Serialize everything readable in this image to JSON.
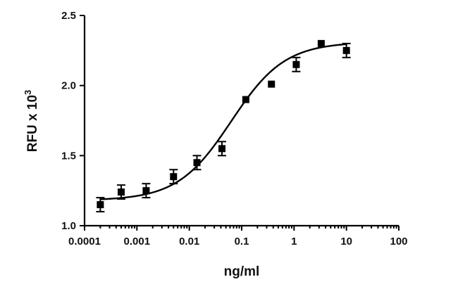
{
  "chart_data": {
    "type": "scatter",
    "title": "",
    "xlabel": "ng/ml",
    "ylabel": "RFU x 10",
    "ylabel_superscript": "3",
    "x_scale": "log",
    "xlim": [
      0.0001,
      100
    ],
    "ylim": [
      1.0,
      2.5
    ],
    "x_tick_labels": [
      "0.0001",
      "0.001",
      "0.01",
      "0.1",
      "1",
      "10",
      "100"
    ],
    "x_tick_values": [
      0.0001,
      0.001,
      0.01,
      0.1,
      1,
      10,
      100
    ],
    "y_tick_labels": [
      "1.0",
      "1.5",
      "2.0",
      "2.5"
    ],
    "y_tick_values": [
      1.0,
      1.5,
      2.0,
      2.5
    ],
    "grid": false,
    "series": [
      {
        "x": [
          0.0002,
          0.0005,
          0.0015,
          0.005,
          0.014,
          0.042,
          0.12,
          0.37,
          1.1,
          3.3,
          10
        ],
        "y": [
          1.15,
          1.24,
          1.25,
          1.35,
          1.45,
          1.55,
          1.9,
          2.01,
          2.15,
          2.3,
          2.25
        ],
        "yerr": [
          0.05,
          0.05,
          0.05,
          0.05,
          0.05,
          0.05,
          0.0,
          0.0,
          0.05,
          0.0,
          0.05
        ]
      }
    ],
    "fit": {
      "model": "sigmoidal dose-response",
      "bottom": 1.18,
      "top": 2.31,
      "log_ec50": -1.2,
      "hill_slope": 0.85
    }
  }
}
